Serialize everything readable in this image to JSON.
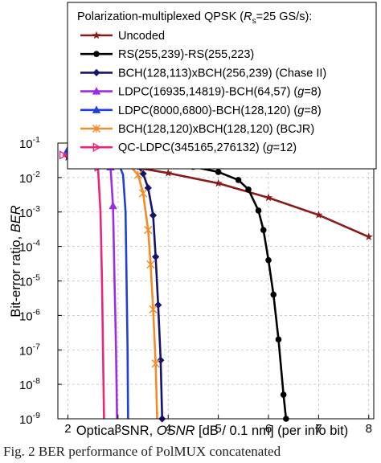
{
  "caption": "Fig. 2 BER performance of PolMUX concatenated",
  "chart_data": {
    "type": "line",
    "title": "Polarization-multiplexed QPSK (Rs=25 GS/s):",
    "title_parts": {
      "prefix": "Polarization-multiplexed QPSK (",
      "sym": "R",
      "sub": "s",
      "suffix": "=25 GS/s):"
    },
    "xlabel": "Optical SNR, OSNR [dB / 0.1 nm] (per info bit)",
    "xlabel_parts": {
      "prefix": "Optical SNR, ",
      "italic": "OSNR",
      "suffix": " [dB / 0.1 nm] (per info bit)"
    },
    "ylabel": "Bit-error ratio, BER",
    "ylabel_parts": {
      "prefix": "Bit-error ratio, ",
      "italic": "BER"
    },
    "xlim": [
      1.8,
      8.1
    ],
    "ylim": [
      1e-09,
      0.1
    ],
    "yscale": "log",
    "grid": true,
    "legend_position": "top-right",
    "xticks": [
      {
        "v": 2,
        "label": "2"
      },
      {
        "v": 3,
        "label": "3"
      },
      {
        "v": 4,
        "label": "4"
      },
      {
        "v": 5,
        "label": "5"
      },
      {
        "v": 6,
        "label": "6"
      },
      {
        "v": 7,
        "label": "7"
      },
      {
        "v": 8,
        "label": "8"
      }
    ],
    "yticks": [
      {
        "exp": -1,
        "base": "10",
        "sup": "-1"
      },
      {
        "exp": -2,
        "base": "10",
        "sup": "-2"
      },
      {
        "exp": -3,
        "base": "10",
        "sup": "-3"
      },
      {
        "exp": -4,
        "base": "10",
        "sup": "-4"
      },
      {
        "exp": -5,
        "base": "10",
        "sup": "-5"
      },
      {
        "exp": -6,
        "base": "10",
        "sup": "-6"
      },
      {
        "exp": -7,
        "base": "10",
        "sup": "-7"
      },
      {
        "exp": -8,
        "base": "10",
        "sup": "-8"
      },
      {
        "exp": -9,
        "base": "10",
        "sup": "-9"
      }
    ],
    "series": [
      {
        "name": "Uncoded",
        "name_parts": [
          {
            "t": "Uncoded"
          }
        ],
        "color": "#8b1a1a",
        "marker": "star",
        "points": [
          [
            2.0,
            0.0385
          ],
          [
            3.0,
            0.024
          ],
          [
            4.0,
            0.0135
          ],
          [
            5.0,
            0.0068
          ],
          [
            6.0,
            0.0026
          ],
          [
            7.0,
            0.00082
          ],
          [
            8.0,
            0.00019
          ]
        ],
        "markers": [
          [
            2.0,
            0.0385
          ],
          [
            3.0,
            0.024
          ],
          [
            4.0,
            0.0135
          ],
          [
            5.0,
            0.0068
          ],
          [
            6.0,
            0.0026
          ],
          [
            7.0,
            0.00082
          ],
          [
            8.0,
            0.00019
          ]
        ]
      },
      {
        "name": "RS(255,239)-RS(255,223)",
        "name_parts": [
          {
            "t": "RS(255,239)-RS(255,223)"
          }
        ],
        "color": "#000000",
        "marker": "circle",
        "points": [
          [
            3.0,
            0.035
          ],
          [
            3.5,
            0.031
          ],
          [
            4.0,
            0.0265
          ],
          [
            4.5,
            0.0205
          ],
          [
            5.0,
            0.0145
          ],
          [
            5.4,
            0.0085
          ],
          [
            5.6,
            0.0045
          ],
          [
            5.8,
            0.0011
          ],
          [
            5.9,
            0.0003
          ],
          [
            6.0,
            4e-05
          ],
          [
            6.1,
            4e-06
          ],
          [
            6.2,
            2e-07
          ],
          [
            6.3,
            5e-09
          ],
          [
            6.35,
            1e-09
          ]
        ],
        "markers": [
          [
            3.0,
            0.035
          ],
          [
            3.5,
            0.031
          ],
          [
            4.0,
            0.0265
          ],
          [
            4.5,
            0.0205
          ],
          [
            5.0,
            0.0145
          ],
          [
            5.4,
            0.0085
          ],
          [
            5.6,
            0.0045
          ],
          [
            5.8,
            0.0011
          ],
          [
            5.9,
            0.0003
          ],
          [
            6.0,
            4e-05
          ],
          [
            6.1,
            4e-06
          ],
          [
            6.2,
            2e-07
          ],
          [
            6.3,
            5e-09
          ],
          [
            6.35,
            1e-09
          ]
        ]
      },
      {
        "name": "BCH(128,113)xBCH(256,239) (Chase II)",
        "name_parts": [
          {
            "t": "BCH(128,113)xBCH(256,239) (Chase II)"
          }
        ],
        "color": "#14146e",
        "marker": "diamond",
        "points": [
          [
            2.0,
            0.055
          ],
          [
            2.3,
            0.045
          ],
          [
            2.6,
            0.038
          ],
          [
            2.9,
            0.032
          ],
          [
            3.2,
            0.027
          ],
          [
            3.4,
            0.021
          ],
          [
            3.5,
            0.013
          ],
          [
            3.6,
            0.005
          ],
          [
            3.7,
            0.0008
          ],
          [
            3.75,
            5e-05
          ],
          [
            3.8,
            2e-06
          ],
          [
            3.85,
            5e-08
          ],
          [
            3.88,
            1e-09
          ]
        ],
        "markers": [
          [
            2.0,
            0.055
          ],
          [
            2.3,
            0.045
          ],
          [
            2.6,
            0.038
          ],
          [
            2.9,
            0.032
          ],
          [
            3.2,
            0.027
          ],
          [
            3.4,
            0.021
          ],
          [
            3.5,
            0.013
          ],
          [
            3.6,
            0.005
          ],
          [
            3.7,
            0.0008
          ],
          [
            3.75,
            5e-05
          ],
          [
            3.8,
            2e-06
          ],
          [
            3.85,
            5e-08
          ],
          [
            3.88,
            1e-09
          ]
        ]
      },
      {
        "name": "LDPC(16935,14819)-BCH(64,57) (g=8)",
        "name_parts": [
          {
            "t": "LDPC(16935,14819)-BCH(64,57) ("
          },
          {
            "t": "g",
            "i": true
          },
          {
            "t": "=8)"
          }
        ],
        "color": "#9a2ee6",
        "marker": "triangle",
        "points": [
          [
            2.0,
            0.06
          ],
          [
            2.3,
            0.05
          ],
          [
            2.6,
            0.04
          ],
          [
            2.85,
            0.02
          ],
          [
            2.9,
            0.0015
          ],
          [
            2.93,
            1e-05
          ],
          [
            2.96,
            1e-07
          ],
          [
            2.98,
            1e-09
          ]
        ],
        "markers": [
          [
            2.0,
            0.06
          ],
          [
            2.3,
            0.05
          ],
          [
            2.6,
            0.04
          ],
          [
            2.85,
            0.02
          ],
          [
            2.9,
            0.0015
          ]
        ]
      },
      {
        "name": "LDPC(8000,6800)-BCH(128,120) (g=8)",
        "name_parts": [
          {
            "t": "LDPC(8000,6800)-BCH(128,120) ("
          },
          {
            "t": "g",
            "i": true
          },
          {
            "t": "=8)"
          }
        ],
        "color": "#1f3fd8",
        "marker": "triangle",
        "points": [
          [
            2.0,
            0.065
          ],
          [
            2.2,
            0.058
          ],
          [
            2.4,
            0.05
          ],
          [
            2.6,
            0.043
          ],
          [
            2.8,
            0.036
          ],
          [
            3.0,
            0.028
          ],
          [
            3.1,
            0.012
          ],
          [
            3.15,
            0.001
          ],
          [
            3.17,
            1e-05
          ],
          [
            3.19,
            1e-07
          ],
          [
            3.2,
            1e-09
          ]
        ],
        "markers": [
          [
            2.0,
            0.065
          ],
          [
            2.2,
            0.058
          ],
          [
            2.4,
            0.05
          ],
          [
            2.6,
            0.043
          ],
          [
            2.8,
            0.036
          ],
          [
            3.0,
            0.028
          ]
        ]
      },
      {
        "name": "BCH(128,120)xBCH(128,120) (BCJR)",
        "name_parts": [
          {
            "t": "BCH(128,120)xBCH(128,120) (BCJR)"
          }
        ],
        "color": "#f28c28",
        "marker": "x",
        "points": [
          [
            3.0,
            0.032
          ],
          [
            3.2,
            0.025
          ],
          [
            3.4,
            0.012
          ],
          [
            3.5,
            0.0035
          ],
          [
            3.6,
            0.0003
          ],
          [
            3.65,
            3e-05
          ],
          [
            3.7,
            1.5e-06
          ],
          [
            3.75,
            4e-08
          ],
          [
            3.78,
            1e-09
          ]
        ],
        "markers": [
          [
            3.0,
            0.032
          ],
          [
            3.2,
            0.025
          ],
          [
            3.4,
            0.012
          ],
          [
            3.5,
            0.0035
          ],
          [
            3.6,
            0.0003
          ],
          [
            3.65,
            3e-05
          ],
          [
            3.7,
            1.5e-06
          ],
          [
            3.75,
            4e-08
          ]
        ]
      },
      {
        "name": "QC-LDPC(345165,276132) (g=12)",
        "name_parts": [
          {
            "t": "QC-LDPC(345165,276132) ("
          },
          {
            "t": "g",
            "i": true
          },
          {
            "t": "=12)"
          }
        ],
        "color": "#e8277a",
        "marker": "triright",
        "points": [
          [
            1.9,
            0.045
          ],
          [
            2.1,
            0.04
          ],
          [
            2.3,
            0.035
          ],
          [
            2.5,
            0.03
          ],
          [
            2.6,
            0.02
          ],
          [
            2.65,
            0.001
          ],
          [
            2.68,
            1e-05
          ],
          [
            2.7,
            1e-07
          ],
          [
            2.72,
            1e-09
          ]
        ],
        "markers": [
          [
            1.9,
            0.045
          ],
          [
            2.1,
            0.04
          ],
          [
            2.3,
            0.035
          ],
          [
            2.5,
            0.03
          ],
          [
            2.6,
            0.02
          ]
        ]
      }
    ]
  }
}
